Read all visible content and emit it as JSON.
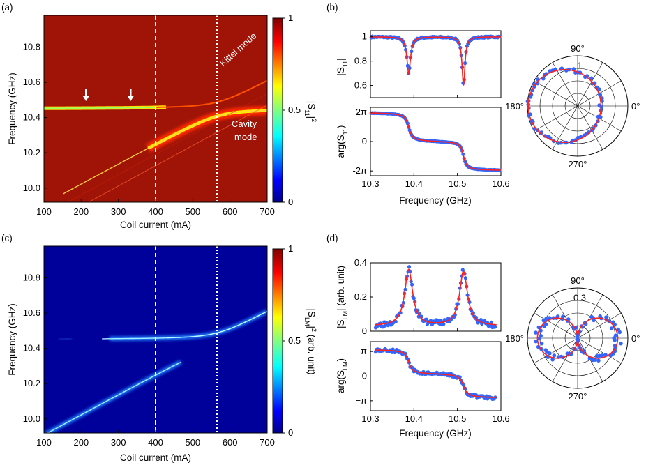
{
  "figure": {
    "panel_labels": [
      "(a)",
      "(b)",
      "(c)",
      "(d)"
    ],
    "colors": {
      "heat_high": "#8b0000",
      "heat_low": "#00008b",
      "data_points": "#3366ff",
      "fit_line": "#ff2020",
      "marker": "#ffffff"
    }
  },
  "chart_data": [
    {
      "id": "a",
      "type": "heatmap",
      "xlabel": "Coil current (mA)",
      "ylabel": "Frequency (GHz)",
      "xlim": [
        100,
        700
      ],
      "ylim": [
        9.92,
        10.98
      ],
      "x_ticks": [
        "100",
        "200",
        "300",
        "400",
        "500",
        "600",
        "700"
      ],
      "y_ticks": [
        "10.0",
        "10.2",
        "10.4",
        "10.6",
        "10.8"
      ],
      "colorbar": {
        "label": "|S",
        "sub": "11",
        "suffix": "|",
        "sup": "2",
        "ticks": [
          "0",
          "0.5",
          "1"
        ]
      },
      "dashed_line_x": 400,
      "dotted_line_x": 565,
      "annotations": [
        {
          "text": "Kittel mode"
        },
        {
          "text": "Cavity"
        },
        {
          "text": "mode"
        }
      ],
      "arrows_x": [
        213,
        333
      ],
      "background": "high"
    },
    {
      "id": "b_mag",
      "type": "line",
      "ylabel_main": "|S",
      "ylabel_sub": "11",
      "ylabel_tail": "|",
      "xlim": [
        10.3,
        10.6
      ],
      "ylim": [
        0.5,
        1.05
      ],
      "y_ticks": [
        "0.6",
        "0.8",
        "1"
      ],
      "resonances": [
        {
          "f0": 10.388,
          "gamma": 0.005,
          "depth": 0.3
        },
        {
          "f0": 10.514,
          "gamma": 0.004,
          "depth": 0.4
        }
      ]
    },
    {
      "id": "b_phase",
      "type": "line",
      "ylabel_main": "arg(S",
      "ylabel_sub": "11",
      "ylabel_tail": ")",
      "xlabel": "Frequency (GHz)",
      "xlim": [
        10.3,
        10.6
      ],
      "ylim": [
        -7.3,
        7.3
      ],
      "x_ticks": [
        "10.3",
        "10.4",
        "10.5",
        "10.6"
      ],
      "y_ticks": [
        "2π",
        "0",
        "-2π"
      ]
    },
    {
      "id": "b_polar",
      "type": "scatter",
      "subtype": "polar",
      "angle_labels": [
        "90°",
        "180°",
        "0°",
        "270°"
      ],
      "r_label": "1",
      "r_max": 1.0
    },
    {
      "id": "c",
      "type": "heatmap",
      "xlabel": "Coil current (mA)",
      "ylabel": "Frequency (GHz)",
      "xlim": [
        100,
        700
      ],
      "ylim": [
        9.92,
        10.98
      ],
      "x_ticks": [
        "100",
        "200",
        "300",
        "400",
        "500",
        "600",
        "700"
      ],
      "y_ticks": [
        "10.0",
        "10.2",
        "10.4",
        "10.6",
        "10.8"
      ],
      "colorbar": {
        "label": "|S",
        "sub": "LM",
        "suffix": "|",
        "sup": "2",
        "extra": " (arb. unit)",
        "ticks": [
          "0",
          "0.5",
          "1"
        ]
      },
      "dashed_line_x": 400,
      "dotted_line_x": 565,
      "background": "low"
    },
    {
      "id": "d_mag",
      "type": "line",
      "ylabel_main": "|S",
      "ylabel_sub": "LM",
      "ylabel_tail": "| (arb. unit)",
      "xlim": [
        10.3,
        10.6
      ],
      "ylim": [
        0,
        0.4
      ],
      "y_ticks": [
        "0",
        "0.2",
        "0.4"
      ],
      "peaks": [
        {
          "f0": 10.388,
          "height": 0.33
        },
        {
          "f0": 10.514,
          "height": 0.32
        }
      ]
    },
    {
      "id": "d_phase",
      "type": "line",
      "ylabel_main": "arg(S",
      "ylabel_sub": "LM",
      "ylabel_tail": ")",
      "xlabel": "Frequency (GHz)",
      "xlim": [
        10.3,
        10.6
      ],
      "ylim": [
        -4.4,
        4.4
      ],
      "x_ticks": [
        "10.3",
        "10.4",
        "10.5",
        "10.6"
      ],
      "y_ticks": [
        "π",
        "0",
        "−π"
      ]
    },
    {
      "id": "d_polar",
      "type": "scatter",
      "subtype": "polar",
      "angle_labels": [
        "90°",
        "180°",
        "0°",
        "270°"
      ],
      "r_label": "0.3",
      "r_max": 0.4
    }
  ]
}
